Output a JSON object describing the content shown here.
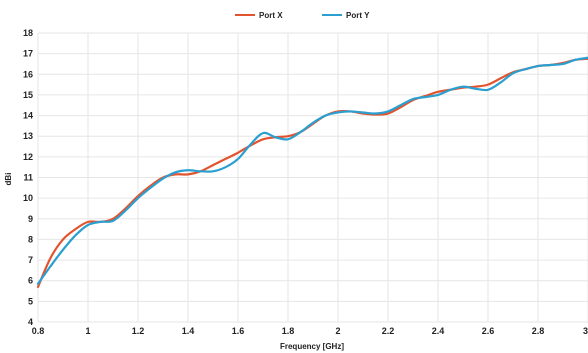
{
  "chart_data": {
    "type": "line",
    "title": "",
    "xlabel": "Frequency [GHz]",
    "ylabel": "dBi",
    "xlim": [
      0.8,
      3.0
    ],
    "ylim": [
      4,
      18
    ],
    "xticks": [
      0.8,
      1,
      1.2,
      1.4,
      1.6,
      1.8,
      2,
      2.2,
      2.4,
      2.6,
      2.8,
      3
    ],
    "yticks": [
      4,
      5,
      6,
      7,
      8,
      9,
      10,
      11,
      12,
      13,
      14,
      15,
      16,
      17,
      18
    ],
    "grid": true,
    "legend_position": "top-center",
    "series": [
      {
        "name": "Port X",
        "color": "#e2542f",
        "x": [
          0.8,
          0.85,
          0.9,
          0.95,
          1.0,
          1.05,
          1.1,
          1.15,
          1.2,
          1.25,
          1.3,
          1.35,
          1.4,
          1.45,
          1.5,
          1.55,
          1.6,
          1.65,
          1.7,
          1.75,
          1.8,
          1.85,
          1.9,
          1.95,
          2.0,
          2.05,
          2.1,
          2.15,
          2.2,
          2.25,
          2.3,
          2.35,
          2.4,
          2.45,
          2.5,
          2.55,
          2.6,
          2.65,
          2.7,
          2.75,
          2.8,
          2.85,
          2.9,
          2.95,
          3.0
        ],
        "values": [
          5.7,
          7.1,
          8.0,
          8.5,
          8.85,
          8.85,
          9.0,
          9.5,
          10.1,
          10.6,
          11.0,
          11.15,
          11.15,
          11.3,
          11.6,
          11.9,
          12.2,
          12.55,
          12.85,
          12.95,
          13.0,
          13.2,
          13.6,
          14.0,
          14.2,
          14.2,
          14.1,
          14.05,
          14.1,
          14.4,
          14.75,
          14.95,
          15.15,
          15.25,
          15.35,
          15.4,
          15.5,
          15.8,
          16.1,
          16.25,
          16.4,
          16.45,
          16.55,
          16.7,
          16.75
        ]
      },
      {
        "name": "Port Y",
        "color": "#2b9fd0",
        "x": [
          0.8,
          0.85,
          0.9,
          0.95,
          1.0,
          1.05,
          1.1,
          1.15,
          1.2,
          1.25,
          1.3,
          1.35,
          1.4,
          1.45,
          1.5,
          1.55,
          1.6,
          1.65,
          1.7,
          1.75,
          1.8,
          1.85,
          1.9,
          1.95,
          2.0,
          2.05,
          2.1,
          2.15,
          2.2,
          2.25,
          2.3,
          2.35,
          2.4,
          2.45,
          2.5,
          2.55,
          2.6,
          2.65,
          2.7,
          2.75,
          2.8,
          2.85,
          2.9,
          2.95,
          3.0
        ],
        "values": [
          5.85,
          6.7,
          7.5,
          8.2,
          8.7,
          8.85,
          8.9,
          9.4,
          10.0,
          10.5,
          10.95,
          11.25,
          11.35,
          11.3,
          11.3,
          11.5,
          11.9,
          12.6,
          13.15,
          12.95,
          12.85,
          13.2,
          13.65,
          14.0,
          14.15,
          14.2,
          14.15,
          14.1,
          14.2,
          14.5,
          14.8,
          14.9,
          15.0,
          15.25,
          15.4,
          15.3,
          15.25,
          15.6,
          16.05,
          16.25,
          16.4,
          16.45,
          16.5,
          16.7,
          16.8
        ]
      }
    ]
  }
}
